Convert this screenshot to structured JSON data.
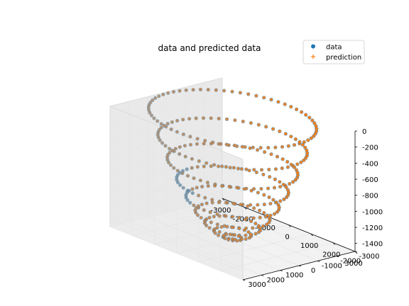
{
  "chart_data": {
    "type": "scatter3d",
    "title": "data and predicted data",
    "legend": {
      "placement": "top-right",
      "entries": [
        {
          "label": "data",
          "marker": "circle",
          "color": "#1f77b4"
        },
        {
          "label": "prediction",
          "marker": "plus",
          "color": "#ff7f0e"
        }
      ]
    },
    "x_axis": {
      "range": [
        -3000,
        3000
      ],
      "ticks": [
        "-3000",
        "-2000",
        "-1000",
        "0",
        "1000",
        "2000",
        "3000"
      ]
    },
    "y_axis": {
      "range": [
        -3000,
        3000
      ],
      "ticks": [
        "-3000",
        "-2000",
        "-1000",
        "0",
        "1000",
        "2000",
        "3000"
      ]
    },
    "z_axis": {
      "range": [
        -1500,
        0
      ],
      "ticks": [
        "0",
        "-200",
        "-400",
        "-600",
        "-800",
        "-1000",
        "-1200",
        "-1400"
      ]
    },
    "surface": {
      "shape": "paraboloid bowl",
      "z_min": -1500,
      "z_max": 0
    },
    "colors": {
      "data": "#1f77b4",
      "prediction": "#ff7f0e",
      "pane": "#f2f2f2",
      "grid": "#e6e6e6"
    }
  }
}
